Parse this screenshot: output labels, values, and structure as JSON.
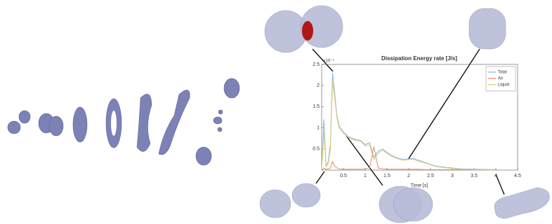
{
  "chart_data": {
    "type": "line",
    "title": "Dissipation Energy rate [J/s]",
    "x_label": "Time [s]",
    "y_multiplier": "×10⁻⁴",
    "x": [
      0,
      0.05,
      0.1,
      0.15,
      0.2,
      0.25,
      0.3,
      0.35,
      0.4,
      0.5,
      0.6,
      0.7,
      0.8,
      0.9,
      1.0,
      1.1,
      1.2,
      1.3,
      1.4,
      1.5,
      1.6,
      1.7,
      1.8,
      1.9,
      2.0,
      2.1,
      2.2,
      2.4,
      2.6,
      2.8,
      3.0,
      3.2,
      3.5,
      4.0
    ],
    "series": [
      {
        "name": "Total",
        "color": "#7fb8e0",
        "values": [
          0,
          1.2,
          0.1,
          0.2,
          0.6,
          2.3,
          1.8,
          1.3,
          1.05,
          0.9,
          0.8,
          0.75,
          0.72,
          0.7,
          0.6,
          0.65,
          0.3,
          0.45,
          0.5,
          0.42,
          0.35,
          0.3,
          0.27,
          0.25,
          0.27,
          0.28,
          0.24,
          0.17,
          0.1,
          0.07,
          0.05,
          0.03,
          0.02,
          0.01
        ]
      },
      {
        "name": "Air",
        "color": "#e8866a",
        "values": [
          0,
          0.05,
          0.02,
          0.03,
          0.05,
          0.2,
          0.1,
          0.05,
          0.03,
          0.02,
          0.02,
          0.02,
          0.02,
          0.02,
          0.03,
          0.05,
          0.55,
          0.05,
          0.03,
          0.02,
          0.02,
          0.02,
          0.02,
          0.02,
          0.02,
          0.02,
          0.02,
          0.01,
          0.01,
          0.01,
          0.01,
          0.01,
          0.01,
          0.01
        ]
      },
      {
        "name": "Liquid",
        "color": "#e3c86a",
        "values": [
          0,
          0.9,
          0.08,
          0.15,
          0.5,
          2.1,
          1.7,
          1.25,
          1.0,
          0.87,
          0.78,
          0.73,
          0.7,
          0.68,
          0.57,
          0.6,
          0.25,
          0.4,
          0.47,
          0.4,
          0.33,
          0.28,
          0.25,
          0.23,
          0.25,
          0.26,
          0.22,
          0.16,
          0.09,
          0.06,
          0.04,
          0.02,
          0.01,
          0.005
        ]
      }
    ],
    "xlim": [
      0,
      4.5
    ],
    "xticks": [
      0.5,
      1,
      1.5,
      2,
      2.5,
      3,
      3.5,
      4,
      4.5
    ],
    "ylim": [
      0,
      2.5
    ],
    "yticks": [
      0.5,
      1,
      1.5,
      2,
      2.5
    ],
    "legend_position": "upper right"
  }
}
